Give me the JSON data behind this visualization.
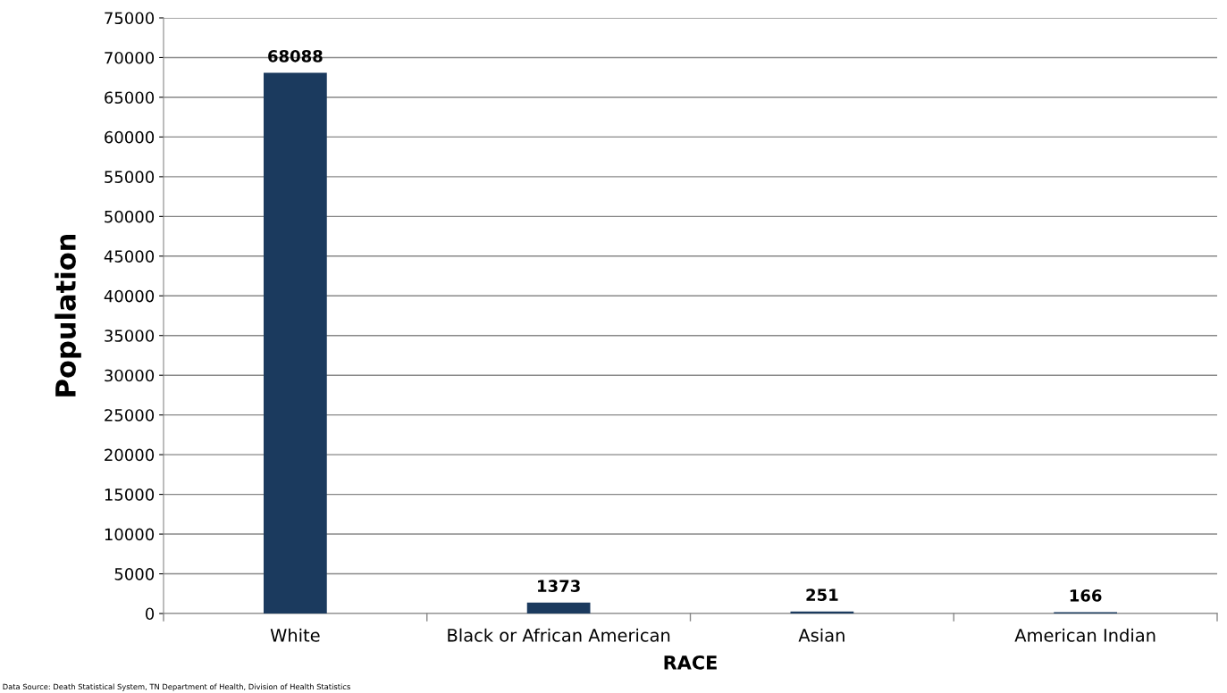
{
  "chart_data": {
    "type": "bar",
    "xlabel": "RACE",
    "ylabel": "Population",
    "categories": [
      "White",
      "Black or African American",
      "Asian",
      "American Indian"
    ],
    "values": [
      68088,
      1373,
      251,
      166
    ],
    "color": "#1b3a5e",
    "data_labels": true,
    "ylim": [
      0,
      75000
    ],
    "yticks": [
      0,
      5000,
      10000,
      15000,
      20000,
      25000,
      30000,
      35000,
      40000,
      45000,
      50000,
      55000,
      60000,
      65000,
      70000,
      75000
    ],
    "grid": "y",
    "legend": false,
    "annotations": [
      "Data Source: Death Statistical System, TN Department of Health, Division of Health Statistics"
    ]
  }
}
